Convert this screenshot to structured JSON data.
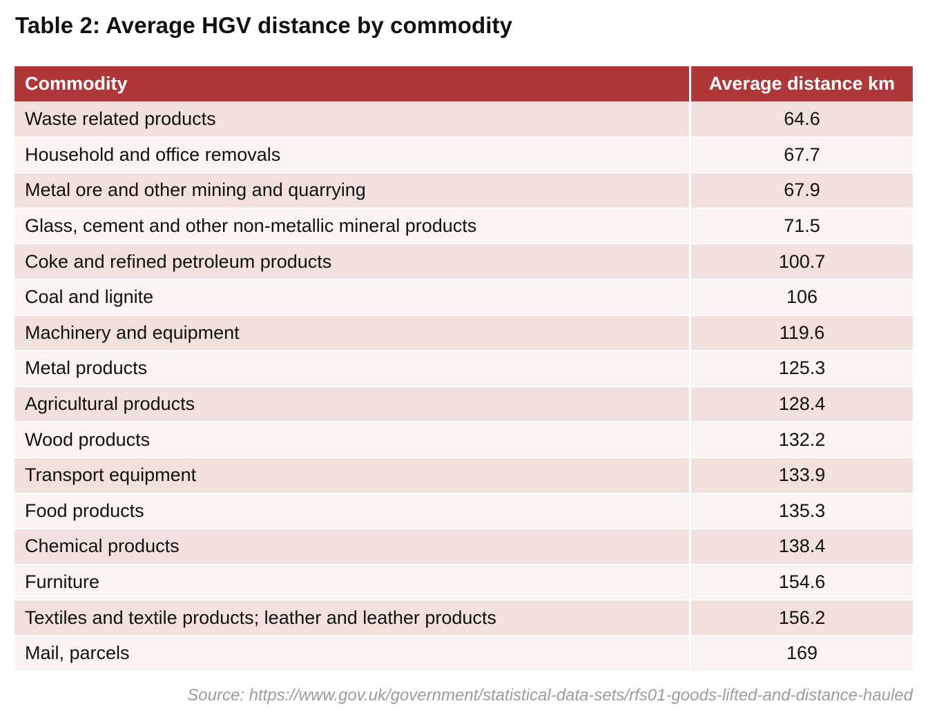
{
  "title": "Table 2: Average HGV distance by commodity",
  "table": {
    "headers": [
      "Commodity",
      "Average distance km"
    ],
    "rows": [
      {
        "commodity": "Waste related products",
        "distance": "64.6"
      },
      {
        "commodity": "Household and office removals",
        "distance": "67.7"
      },
      {
        "commodity": "Metal ore and other mining and quarrying",
        "distance": "67.9"
      },
      {
        "commodity": "Glass, cement and other non-metallic mineral products",
        "distance": "71.5"
      },
      {
        "commodity": "Coke and refined petroleum products",
        "distance": "100.7"
      },
      {
        "commodity": "Coal and lignite",
        "distance": "106"
      },
      {
        "commodity": "Machinery and equipment",
        "distance": "119.6"
      },
      {
        "commodity": "Metal products",
        "distance": "125.3"
      },
      {
        "commodity": "Agricultural products",
        "distance": "128.4"
      },
      {
        "commodity": "Wood products",
        "distance": "132.2"
      },
      {
        "commodity": "Transport equipment",
        "distance": "133.9"
      },
      {
        "commodity": "Food products",
        "distance": "135.3"
      },
      {
        "commodity": "Chemical products",
        "distance": "138.4"
      },
      {
        "commodity": "Furniture",
        "distance": "154.6"
      },
      {
        "commodity": "Textiles and textile products; leather and leather products",
        "distance": "156.2"
      },
      {
        "commodity": "Mail, parcels",
        "distance": "169"
      }
    ]
  },
  "source": "Source: https://www.gov.uk/government/statistical-data-sets/rfs01-goods-lifted-and-distance-hauled",
  "colors": {
    "header_bg": "#ad3739",
    "row_odd": "#f1e0dc",
    "row_even": "#faf3f2",
    "source_text": "#9c9c9c"
  }
}
